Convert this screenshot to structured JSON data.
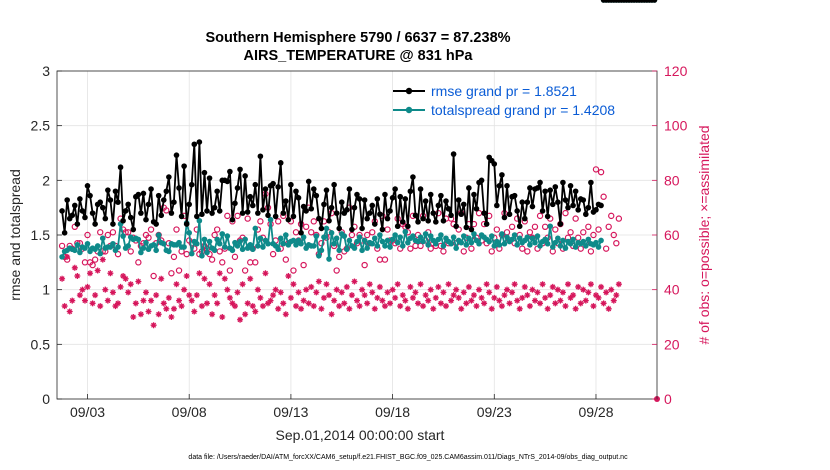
{
  "chart_data": {
    "type": "line",
    "title_line1": "Southern Hemisphere 5790 / 6637 = 87.238%",
    "title_line2": "AIRS_TEMPERATURE @ 831 hPa",
    "xlabel": "Sep.01,2014 00:00:00 start",
    "ylabel_left": "rmse and totalspread",
    "ylabel_right": "# of obs: o=possible; ×=assimilated",
    "ylim_left": [
      0,
      3
    ],
    "ylim_right": [
      0,
      120
    ],
    "xlim": [
      1.5,
      31.0
    ],
    "x_ticks": [
      3,
      8,
      13,
      18,
      23,
      28
    ],
    "x_tick_labels": [
      "09/03",
      "09/08",
      "09/13",
      "09/18",
      "09/23",
      "09/28"
    ],
    "y_left_ticks": [
      0,
      0.5,
      1,
      1.5,
      2,
      2.5,
      3
    ],
    "y_left_tick_labels": [
      "0",
      "0.5",
      "1",
      "1.5",
      "2",
      "2.5",
      "3"
    ],
    "y_right_ticks": [
      0,
      20,
      40,
      60,
      80,
      100,
      120
    ],
    "y_right_tick_labels": [
      "0",
      "20",
      "40",
      "60",
      "80",
      "100",
      "120"
    ],
    "grid": true,
    "legend": [
      {
        "label": "rmse grand pr = 1.8521",
        "color": "#000000"
      },
      {
        "label": "totalspread grand pr = 1.4208",
        "color": "#0e8a8a"
      }
    ],
    "colors": {
      "rmse": "#000000",
      "spread": "#0e8a8a",
      "obs": "#d6175c"
    },
    "footer": "data file: /Users/raeder/DAI/ATM_forcXX/CAM6_setup/f.e21.FHIST_BGC.f09_025.CAM6assim.011/Diags_NTrS_2014-09/obs_diag_output.nc",
    "x": [
      1.75,
      1.875,
      2.0,
      2.125,
      2.25,
      2.375,
      2.5,
      2.625,
      2.75,
      2.875,
      3.0,
      3.125,
      3.25,
      3.375,
      3.5,
      3.625,
      3.75,
      3.875,
      4.0,
      4.125,
      4.25,
      4.375,
      4.5,
      4.625,
      4.75,
      4.875,
      5.0,
      5.125,
      5.25,
      5.375,
      5.5,
      5.625,
      5.75,
      5.875,
      6.0,
      6.125,
      6.25,
      6.375,
      6.5,
      6.625,
      6.75,
      6.875,
      7.0,
      7.125,
      7.25,
      7.375,
      7.5,
      7.625,
      7.75,
      7.875,
      8.0,
      8.125,
      8.25,
      8.375,
      8.5,
      8.625,
      8.75,
      8.875,
      9.0,
      9.125,
      9.25,
      9.375,
      9.5,
      9.625,
      9.75,
      9.875,
      10.0,
      10.125,
      10.25,
      10.375,
      10.5,
      10.625,
      10.75,
      10.875,
      11.0,
      11.125,
      11.25,
      11.375,
      11.5,
      11.625,
      11.75,
      11.875,
      12.0,
      12.125,
      12.25,
      12.375,
      12.5,
      12.625,
      12.75,
      12.875,
      13.0,
      13.125,
      13.25,
      13.375,
      13.5,
      13.625,
      13.75,
      13.875,
      14.0,
      14.125,
      14.25,
      14.375,
      14.5,
      14.625,
      14.75,
      14.875,
      15.0,
      15.125,
      15.25,
      15.375,
      15.5,
      15.625,
      15.75,
      15.875,
      16.0,
      16.125,
      16.25,
      16.375,
      16.5,
      16.625,
      16.75,
      16.875,
      17.0,
      17.125,
      17.25,
      17.375,
      17.5,
      17.625,
      17.75,
      17.875,
      18.0,
      18.125,
      18.25,
      18.375,
      18.5,
      18.625,
      18.75,
      18.875,
      19.0,
      19.125,
      19.25,
      19.375,
      19.5,
      19.625,
      19.75,
      19.875,
      20.0,
      20.125,
      20.25,
      20.375,
      20.5,
      20.625,
      20.75,
      20.875,
      21.0,
      21.125,
      21.25,
      21.375,
      21.5,
      21.625,
      21.75,
      21.875,
      22.0,
      22.125,
      22.25,
      22.375,
      22.5,
      22.625,
      22.75,
      22.875,
      23.0,
      23.125,
      23.25,
      23.375,
      23.5,
      23.625,
      23.75,
      23.875,
      24.0,
      24.125,
      24.25,
      24.375,
      24.5,
      24.625,
      24.75,
      24.875,
      25.0,
      25.125,
      25.25,
      25.375,
      25.5,
      25.625,
      25.75,
      25.875,
      26.0,
      26.125,
      26.25,
      26.375,
      26.5,
      26.625,
      26.75,
      26.875,
      27.0,
      27.125,
      27.25,
      27.375,
      27.5,
      27.625,
      27.75,
      27.875,
      28.0,
      28.125,
      28.25,
      28.375,
      28.5,
      28.625,
      28.75,
      28.875,
      29.0,
      29.125,
      29.25,
      29.375,
      29.5,
      29.625,
      29.75,
      29.875,
      30.0,
      30.125,
      30.25,
      30.375,
      30.5,
      30.625,
      30.75,
      30.875
    ],
    "rmse": [
      1.72,
      1.52,
      1.82,
      1.65,
      1.68,
      1.77,
      1.6,
      1.83,
      1.72,
      1.66,
      1.95,
      1.86,
      1.7,
      1.6,
      1.78,
      1.8,
      1.75,
      1.65,
      1.91,
      1.82,
      1.6,
      1.9,
      1.8,
      2.12,
      1.63,
      1.72,
      1.78,
      1.66,
      1.55,
      1.85,
      1.87,
      1.7,
      1.88,
      1.64,
      1.78,
      1.92,
      1.62,
      1.6,
      1.86,
      1.68,
      1.82,
      1.9,
      2.03,
      1.7,
      1.8,
      2.23,
      1.93,
      1.67,
      2.13,
      1.6,
      1.78,
      1.96,
      2.33,
      1.67,
      2.35,
      1.69,
      2.07,
      1.72,
      2.02,
      1.7,
      1.75,
      1.9,
      1.72,
      2.0,
      2.0,
      1.99,
      2.08,
      1.64,
      1.79,
      1.93,
      2.1,
      1.7,
      2.04,
      1.71,
      1.85,
      1.77,
      1.96,
      1.7,
      2.22,
      1.73,
      1.92,
      1.68,
      1.95,
      1.97,
      1.67,
      1.94,
      2.16,
      1.7,
      1.81,
      1.64,
      1.96,
      1.67,
      1.9,
      1.84,
      1.52,
      1.76,
      1.72,
      1.99,
      1.74,
      1.92,
      1.86,
      1.65,
      1.56,
      1.78,
      1.91,
      1.63,
      1.75,
      1.96,
      1.7,
      1.56,
      1.8,
      1.7,
      1.73,
      1.92,
      1.55,
      1.75,
      1.87,
      1.83,
      1.56,
      1.82,
      1.65,
      1.7,
      1.77,
      1.6,
      1.83,
      1.69,
      1.55,
      1.87,
      1.65,
      1.72,
      1.84,
      1.92,
      1.58,
      1.85,
      1.62,
      1.83,
      1.58,
      1.9,
      2.03,
      1.68,
      1.62,
      1.92,
      1.65,
      1.81,
      1.63,
      1.87,
      1.7,
      1.62,
      1.77,
      1.86,
      1.63,
      1.81,
      1.74,
      1.68,
      2.24,
      1.58,
      1.82,
      1.69,
      1.78,
      1.57,
      1.93,
      1.55,
      1.87,
      1.74,
      1.98,
      2.0,
      1.7,
      1.6,
      2.21,
      2.18,
      2.15,
      1.77,
      1.95,
      2.05,
      1.66,
      1.95,
      1.69,
      1.85,
      1.86,
      1.72,
      1.58,
      1.8,
      1.65,
      1.8,
      1.93,
      1.76,
      1.92,
      1.93,
      1.98,
      1.72,
      1.9,
      1.67,
      1.91,
      1.78,
      1.94,
      1.8,
      1.6,
      1.98,
      1.82,
      1.75,
      1.95,
      1.77,
      1.9,
      1.73,
      1.83,
      1.82,
      1.69,
      1.75,
      1.98,
      1.71,
      1.73,
      1.78,
      1.77
    ],
    "spread": [
      1.3,
      1.35,
      1.36,
      1.38,
      1.37,
      1.36,
      1.41,
      1.34,
      1.39,
      1.38,
      1.42,
      1.35,
      1.38,
      1.37,
      1.4,
      1.33,
      1.47,
      1.38,
      1.39,
      1.39,
      1.42,
      1.36,
      1.39,
      1.6,
      1.49,
      1.38,
      1.4,
      1.48,
      1.46,
      1.47,
      1.46,
      1.34,
      1.38,
      1.43,
      1.37,
      1.4,
      1.41,
      1.36,
      1.5,
      1.43,
      1.42,
      1.36,
      1.35,
      1.42,
      1.41,
      1.41,
      1.43,
      1.39,
      1.39,
      1.61,
      1.52,
      1.33,
      1.44,
      1.42,
      1.63,
      1.31,
      1.46,
      1.34,
      1.44,
      1.38,
      1.36,
      1.46,
      1.42,
      1.51,
      1.39,
      1.49,
      1.38,
      1.36,
      1.43,
      1.4,
      1.44,
      1.37,
      1.46,
      1.38,
      1.41,
      1.37,
      1.56,
      1.4,
      1.47,
      1.39,
      1.45,
      1.42,
      1.64,
      1.42,
      1.4,
      1.37,
      1.47,
      1.42,
      1.5,
      1.41,
      1.44,
      1.45,
      1.41,
      1.45,
      1.42,
      1.48,
      1.38,
      1.41,
      1.4,
      1.4,
      1.49,
      1.31,
      1.36,
      1.48,
      1.56,
      1.28,
      1.52,
      1.42,
      1.47,
      1.36,
      1.51,
      1.49,
      1.37,
      1.45,
      1.4,
      1.38,
      1.44,
      1.48,
      1.36,
      1.45,
      1.38,
      1.43,
      1.42,
      1.47,
      1.4,
      1.5,
      1.44,
      1.4,
      1.45,
      1.39,
      1.46,
      1.5,
      1.43,
      1.48,
      1.4,
      1.53,
      1.43,
      1.47,
      1.49,
      1.45,
      1.44,
      1.48,
      1.44,
      1.51,
      1.41,
      1.49,
      1.45,
      1.42,
      1.46,
      1.5,
      1.4,
      1.47,
      1.44,
      1.42,
      1.48,
      1.38,
      1.45,
      1.43,
      1.49,
      1.41,
      1.47,
      1.43,
      1.51,
      1.45,
      1.42,
      1.5,
      1.48,
      1.46,
      1.44,
      1.49,
      1.4,
      1.44,
      1.41,
      1.51,
      1.42,
      1.48,
      1.44,
      1.46,
      1.5,
      1.41,
      1.47,
      1.43,
      1.45,
      1.48,
      1.41,
      1.47,
      1.43,
      1.49,
      1.4,
      1.44,
      1.46,
      1.42,
      1.58,
      1.39,
      1.43,
      1.47,
      1.4,
      1.45,
      1.38,
      1.44,
      1.42,
      1.46,
      1.39,
      1.43,
      1.42,
      1.44,
      1.4,
      1.46,
      1.42,
      1.41,
      1.43,
      1.39,
      1.45
    ],
    "obs_possible": [
      56,
      52,
      51,
      56,
      55,
      63,
      57,
      57,
      55,
      50,
      60,
      50,
      49,
      51,
      54,
      61,
      54,
      54,
      60,
      56,
      61,
      56,
      53,
      66,
      62,
      61,
      61,
      54,
      59,
      58,
      50,
      56,
      57,
      60,
      59,
      62,
      45,
      57,
      60,
      58,
      70,
      69,
      57,
      46,
      52,
      62,
      47,
      54,
      67,
      53,
      58,
      57,
      55,
      62,
      53,
      54,
      56,
      55,
      53,
      51,
      60,
      62,
      54,
      50,
      55,
      67,
      47,
      65,
      52,
      67,
      58,
      59,
      47,
      66,
      50,
      55,
      50,
      62,
      65,
      59,
      75,
      70,
      64,
      53,
      58,
      65,
      55,
      67,
      51,
      57,
      65,
      47,
      61,
      58,
      64,
      49,
      63,
      70,
      61,
      65,
      60,
      53,
      57,
      65,
      59,
      61,
      68,
      56,
      47,
      52,
      61,
      54,
      55,
      70,
      60,
      63,
      57,
      60,
      58,
      49,
      60,
      57,
      61,
      65,
      55,
      51,
      67,
      51,
      62,
      58,
      58,
      57,
      66,
      55,
      64,
      63,
      61,
      55,
      67,
      56,
      60,
      56,
      67,
      58,
      61,
      55,
      57,
      56,
      68,
      56,
      54,
      66,
      57,
      66,
      64,
      57,
      62,
      68,
      54,
      59,
      64,
      55,
      64,
      59,
      68,
      58,
      64,
      57,
      67,
      54,
      59,
      62,
      55,
      60,
      68,
      61,
      58,
      63,
      57,
      66,
      60,
      55,
      65,
      54,
      61,
      59,
      63,
      55,
      67,
      57,
      63,
      59,
      66,
      54,
      62,
      57,
      64,
      55,
      68,
      59,
      61,
      56,
      66,
      59,
      55,
      61,
      57,
      63,
      54,
      60,
      84,
      62,
      83,
      74,
      55,
      63,
      67,
      60,
      57,
      66
    ],
    "obs_assimilated": [
      44,
      34,
      52,
      32,
      36,
      48,
      45,
      38,
      40,
      36,
      41,
      46,
      35,
      38,
      47,
      34,
      51,
      40,
      36,
      46,
      39,
      34,
      35,
      41,
      45,
      44,
      39,
      42,
      30,
      35,
      43,
      31,
      36,
      39,
      32,
      36,
      27,
      38,
      31,
      44,
      35,
      33,
      37,
      30,
      33,
      42,
      36,
      34,
      40,
      45,
      38,
      36,
      32,
      38,
      46,
      34,
      44,
      35,
      42,
      31,
      38,
      35,
      46,
      30,
      44,
      40,
      37,
      35,
      34,
      39,
      29,
      42,
      31,
      35,
      44,
      34,
      32,
      40,
      37,
      34,
      46,
      35,
      36,
      38,
      40,
      33,
      39,
      35,
      31,
      45,
      37,
      42,
      34,
      39,
      33,
      36,
      40,
      35,
      41,
      34,
      39,
      43,
      33,
      37,
      42,
      38,
      31,
      36,
      40,
      34,
      39,
      35,
      41,
      33,
      38,
      43,
      36,
      34,
      40,
      38,
      35,
      42,
      39,
      33,
      37,
      41,
      36,
      34,
      39,
      35,
      40,
      37,
      42,
      34,
      38,
      36,
      33,
      41,
      37,
      39,
      35,
      42,
      34,
      38,
      36,
      40,
      33,
      37,
      41,
      35,
      39,
      34,
      42,
      36,
      38,
      40,
      37,
      33,
      39,
      35,
      41,
      36,
      38,
      34,
      40,
      37,
      35,
      42,
      39,
      33,
      37,
      41,
      36,
      34,
      38,
      40,
      35,
      39,
      42,
      36,
      33,
      37,
      41,
      38,
      34,
      40,
      36,
      39,
      35,
      42,
      37,
      33,
      38,
      41,
      35,
      40,
      36,
      39,
      34,
      42,
      37,
      38,
      33,
      41,
      35,
      40,
      36,
      39,
      42,
      34,
      38,
      37,
      41,
      35,
      39,
      33,
      40,
      36,
      38,
      42
    ]
  }
}
